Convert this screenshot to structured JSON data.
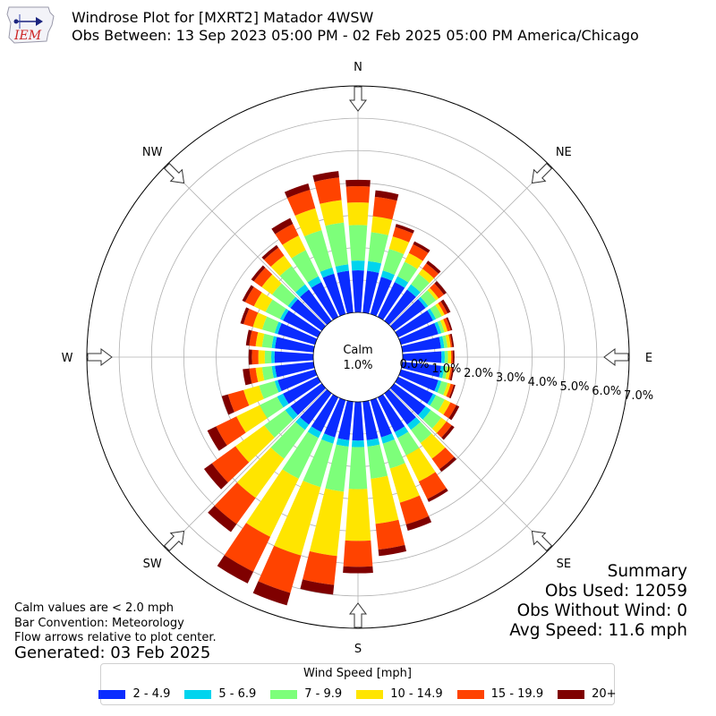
{
  "header": {
    "logo_text": "IEM",
    "title_line1": "Windrose Plot for [MXRT2] Matador 4WSW",
    "title_line2": "Obs Between: 13 Sep 2023 05:00 PM - 02 Feb 2025 05:00 PM America/Chicago"
  },
  "notes": {
    "line1": "Calm values are < 2.0 mph",
    "line2": "Bar Convention: Meteorology",
    "line3": "Flow arrows relative to plot center.",
    "generated": "Generated: 03 Feb 2025"
  },
  "summary": {
    "title": "Summary",
    "obs_used": "Obs Used: 12059",
    "obs_without_wind": "Obs Without Wind: 0",
    "avg_speed": "Avg Speed: 11.6 mph"
  },
  "legend": {
    "title": "Wind Speed [mph]",
    "items": [
      {
        "label": "2 - 4.9",
        "color": "#0a2cff"
      },
      {
        "label": "5 - 6.9",
        "color": "#00d4ee"
      },
      {
        "label": "7 - 9.9",
        "color": "#7dff7a"
      },
      {
        "label": "10 - 14.9",
        "color": "#ffe500"
      },
      {
        "label": "15 - 19.9",
        "color": "#ff4300"
      },
      {
        "label": "20+",
        "color": "#7f0000"
      }
    ]
  },
  "chart_data": {
    "type": "windrose",
    "calm_label": "Calm",
    "calm_value": "1.0%",
    "radial_ticks": [
      "0.0%",
      "1.0%",
      "2.0%",
      "3.0%",
      "4.0%",
      "5.0%",
      "6.0%",
      "7.0%"
    ],
    "rmax": 7.0,
    "compass_labels": [
      {
        "label": "N",
        "deg": 0
      },
      {
        "label": "NE",
        "deg": 45
      },
      {
        "label": "E",
        "deg": 90
      },
      {
        "label": "SE",
        "deg": 135
      },
      {
        "label": "S",
        "deg": 180
      },
      {
        "label": "SW",
        "deg": 225
      },
      {
        "label": "W",
        "deg": 270
      },
      {
        "label": "NW",
        "deg": 315
      }
    ],
    "bin_colors": [
      "#0a2cff",
      "#00d4ee",
      "#7dff7a",
      "#ffe500",
      "#ff4300",
      "#7f0000"
    ],
    "directions": [
      0,
      10,
      20,
      30,
      40,
      50,
      60,
      70,
      80,
      90,
      100,
      110,
      120,
      130,
      140,
      150,
      160,
      170,
      180,
      190,
      200,
      210,
      220,
      230,
      240,
      250,
      260,
      270,
      280,
      290,
      300,
      310,
      320,
      330,
      340,
      350
    ],
    "cumulative": [
      [
        1.3,
        1.6,
        2.7,
        3.4,
        3.9,
        4.1
      ],
      [
        1.3,
        1.6,
        2.5,
        3.0,
        3.6,
        3.8
      ],
      [
        1.2,
        1.4,
        2.1,
        2.5,
        2.8,
        2.9
      ],
      [
        1.2,
        1.4,
        1.9,
        2.2,
        2.5,
        2.6
      ],
      [
        1.2,
        1.4,
        1.8,
        2.0,
        2.2,
        2.3
      ],
      [
        1.2,
        1.3,
        1.6,
        1.7,
        1.9,
        2.0
      ],
      [
        1.2,
        1.3,
        1.5,
        1.6,
        1.7,
        1.8
      ],
      [
        1.2,
        1.3,
        1.4,
        1.5,
        1.6,
        1.65
      ],
      [
        1.2,
        1.3,
        1.4,
        1.5,
        1.55,
        1.6
      ],
      [
        1.2,
        1.3,
        1.4,
        1.5,
        1.55,
        1.6
      ],
      [
        1.2,
        1.3,
        1.4,
        1.5,
        1.55,
        1.6
      ],
      [
        1.2,
        1.3,
        1.5,
        1.6,
        1.7,
        1.75
      ],
      [
        1.2,
        1.3,
        1.6,
        1.8,
        2.0,
        2.1
      ],
      [
        1.2,
        1.4,
        1.8,
        2.0,
        2.2,
        2.3
      ],
      [
        1.2,
        1.4,
        1.9,
        2.5,
        2.9,
        3.0
      ],
      [
        1.2,
        1.4,
        2.0,
        2.9,
        3.5,
        3.6
      ],
      [
        1.2,
        1.4,
        2.2,
        3.3,
        4.0,
        4.2
      ],
      [
        1.2,
        1.4,
        2.4,
        3.8,
        4.6,
        4.8
      ],
      [
        1.2,
        1.4,
        2.7,
        4.3,
        5.1,
        5.3
      ],
      [
        1.2,
        1.4,
        2.8,
        4.8,
        5.7,
        6.0
      ],
      [
        1.2,
        1.4,
        2.8,
        5.0,
        6.2,
        6.6
      ],
      [
        1.2,
        1.4,
        2.8,
        4.8,
        6.0,
        6.4
      ],
      [
        1.2,
        1.4,
        2.5,
        4.0,
        5.0,
        5.3
      ],
      [
        1.2,
        1.4,
        2.2,
        3.3,
        4.2,
        4.5
      ],
      [
        1.2,
        1.4,
        2.0,
        2.8,
        3.5,
        3.8
      ],
      [
        1.2,
        1.3,
        1.8,
        2.3,
        2.8,
        3.0
      ],
      [
        1.2,
        1.3,
        1.6,
        1.8,
        2.0,
        2.2
      ],
      [
        1.2,
        1.3,
        1.5,
        1.7,
        1.9,
        2.0
      ],
      [
        1.2,
        1.3,
        1.6,
        1.8,
        2.0,
        2.1
      ],
      [
        1.2,
        1.3,
        1.7,
        2.0,
        2.3,
        2.4
      ],
      [
        1.2,
        1.3,
        1.8,
        2.2,
        2.5,
        2.6
      ],
      [
        1.2,
        1.3,
        1.9,
        2.3,
        2.6,
        2.7
      ],
      [
        1.2,
        1.4,
        2.1,
        2.5,
        2.8,
        2.9
      ],
      [
        1.2,
        1.4,
        2.3,
        2.8,
        3.2,
        3.4
      ],
      [
        1.3,
        1.5,
        2.7,
        3.4,
        4.0,
        4.2
      ],
      [
        1.3,
        1.5,
        2.8,
        3.5,
        4.2,
        4.4
      ]
    ]
  }
}
